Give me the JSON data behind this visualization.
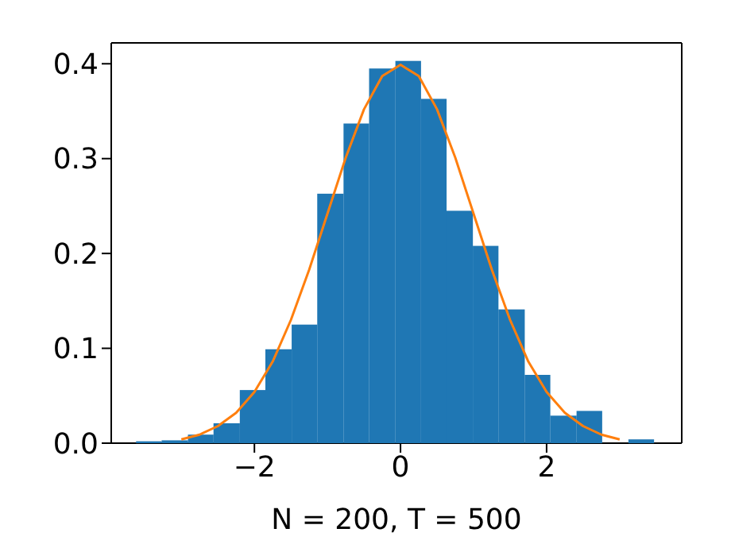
{
  "chart_data": {
    "type": "histogram",
    "xlabel": "N = 200, T = 500",
    "bins": [
      -3.62,
      -3.27,
      -2.91,
      -2.56,
      -2.2,
      -1.85,
      -1.49,
      -1.14,
      -0.78,
      -0.43,
      -0.07,
      0.28,
      0.63,
      0.99,
      1.34,
      1.7,
      2.05,
      2.41,
      2.76,
      3.12,
      3.47
    ],
    "values": [
      0.002,
      0.003,
      0.009,
      0.021,
      0.056,
      0.099,
      0.125,
      0.263,
      0.337,
      0.395,
      0.403,
      0.363,
      0.245,
      0.208,
      0.141,
      0.072,
      0.029,
      0.034,
      0,
      0.004
    ],
    "color": "#1f77b4",
    "series": [
      {
        "type": "line",
        "color": "#ff7f0e",
        "x": [
          -3,
          -2.75,
          -2.5,
          -2.25,
          -2,
          -1.75,
          -1.5,
          -1.25,
          -1,
          -0.75,
          -0.5,
          -0.25,
          0,
          0.25,
          0.5,
          0.75,
          1,
          1.25,
          1.5,
          1.75,
          2,
          2.25,
          2.5,
          2.75,
          3
        ],
        "values": [
          0.004,
          0.009,
          0.018,
          0.032,
          0.054,
          0.086,
          0.13,
          0.183,
          0.242,
          0.301,
          0.352,
          0.387,
          0.399,
          0.387,
          0.352,
          0.301,
          0.242,
          0.183,
          0.13,
          0.086,
          0.054,
          0.032,
          0.018,
          0.009,
          0.004
        ]
      }
    ],
    "xlim": [
      -3.96,
      3.85
    ],
    "ylim": [
      0,
      0.422
    ],
    "xticks": [
      {
        "value": -2,
        "label": "−2"
      },
      0,
      2
    ],
    "yticks": [
      {
        "value": 0,
        "label": "0.0"
      },
      0.1,
      0.2,
      0.3,
      0.4
    ],
    "grid": false,
    "legend": false
  }
}
